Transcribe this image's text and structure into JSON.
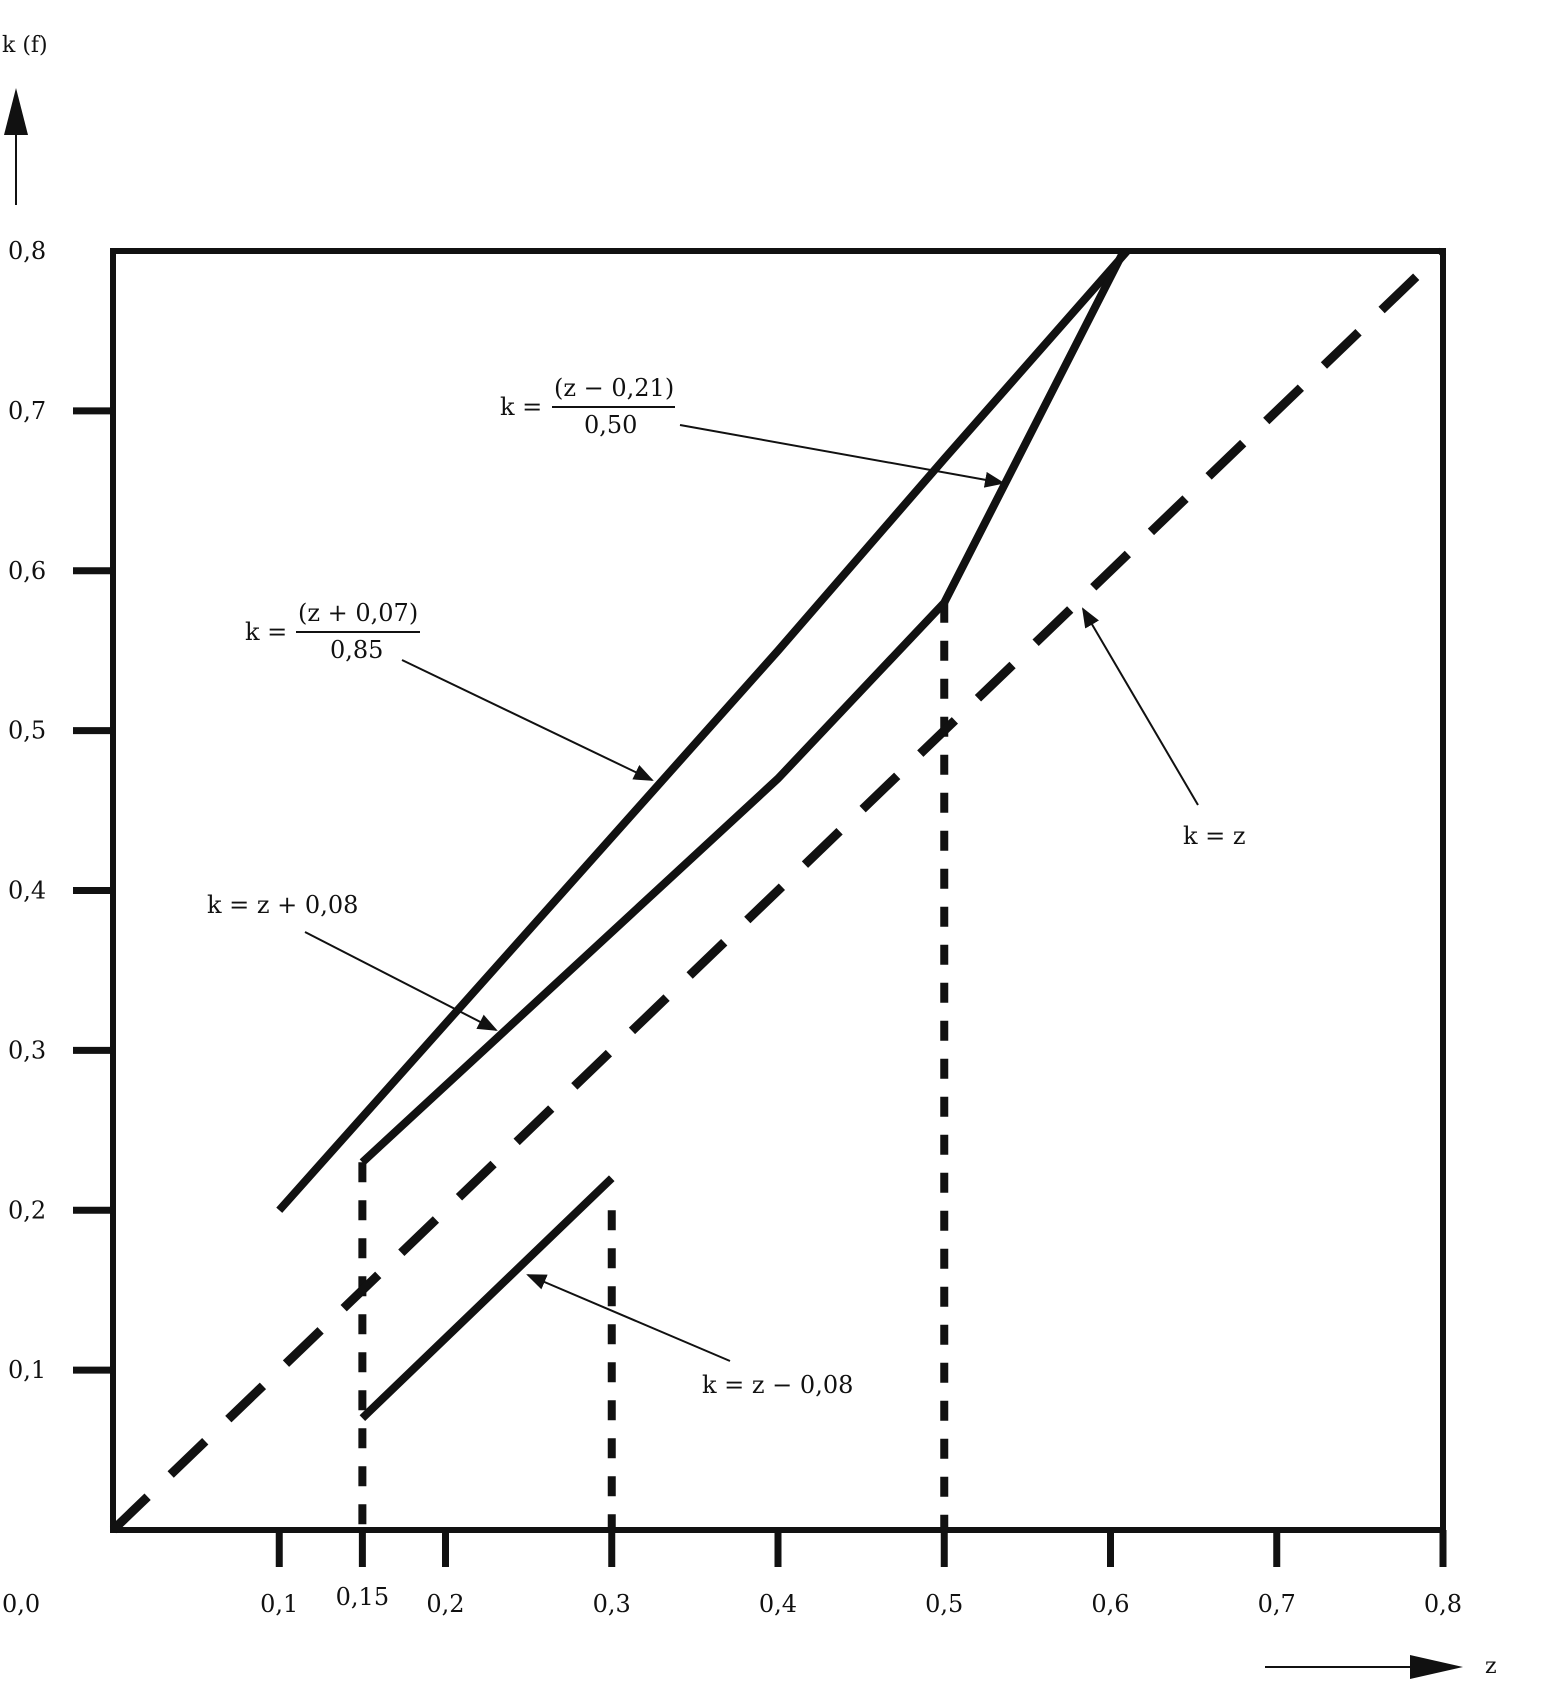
{
  "chart_data": {
    "type": "line",
    "title": "",
    "xlabel": "z",
    "ylabel": "k (f)",
    "xlim": [
      0,
      0.8
    ],
    "ylim": [
      0,
      0.8
    ],
    "x_ticks": [
      {
        "value": 0.1,
        "label": "0,1"
      },
      {
        "value": 0.15,
        "label": "0,15"
      },
      {
        "value": 0.2,
        "label": "0,2"
      },
      {
        "value": 0.3,
        "label": "0,3"
      },
      {
        "value": 0.4,
        "label": "0,4"
      },
      {
        "value": 0.5,
        "label": "0,5"
      },
      {
        "value": 0.6,
        "label": "0,6"
      },
      {
        "value": 0.7,
        "label": "0,7"
      },
      {
        "value": 0.8,
        "label": "0,8"
      }
    ],
    "y_ticks": [
      {
        "value": 0.1,
        "label": "0,1"
      },
      {
        "value": 0.2,
        "label": "0,2"
      },
      {
        "value": 0.3,
        "label": "0,3"
      },
      {
        "value": 0.4,
        "label": "0,4"
      },
      {
        "value": 0.5,
        "label": "0,5"
      },
      {
        "value": 0.6,
        "label": "0,6"
      },
      {
        "value": 0.7,
        "label": "0,7"
      },
      {
        "value": 0.8,
        "label": "0,8"
      }
    ],
    "origin_label": "0,0",
    "series": [
      {
        "id": "k_eq_z",
        "style": "dashed",
        "points": [
          [
            0,
            0
          ],
          [
            0.8,
            0.8
          ]
        ]
      },
      {
        "id": "upper",
        "style": "solid",
        "points": [
          [
            0.1,
            0.2
          ],
          [
            0.4,
            0.55
          ],
          [
            0.5,
            0.67
          ],
          [
            0.61,
            0.8
          ]
        ]
      },
      {
        "id": "middle",
        "style": "solid",
        "points": [
          [
            0.15,
            0.23
          ],
          [
            0.4,
            0.47
          ],
          [
            0.5,
            0.58
          ],
          [
            0.608,
            0.8
          ]
        ]
      },
      {
        "id": "lower",
        "style": "solid",
        "points": [
          [
            0.15,
            0.07
          ],
          [
            0.3,
            0.22
          ]
        ]
      }
    ],
    "verticals": [
      {
        "x": 0.15,
        "y_top": 0.23
      },
      {
        "x": 0.3,
        "y_top": 0.2
      },
      {
        "x": 0.5,
        "y_top": 0.58
      }
    ],
    "annotations": [
      {
        "id": "ann-k-z-minus-021",
        "prefix": "k =",
        "numerator": "(z − 0,21)",
        "denominator": "0,50"
      },
      {
        "id": "ann-k-z-plus-007",
        "prefix": "k =",
        "numerator": "(z + 0,07)",
        "denominator": "0,85"
      },
      {
        "id": "ann-k-z-plus-008",
        "text": "k = z + 0,08"
      },
      {
        "id": "ann-k-z",
        "text": "k = z"
      },
      {
        "id": "ann-k-z-minus-008",
        "text": "k = z − 0,08"
      }
    ]
  }
}
